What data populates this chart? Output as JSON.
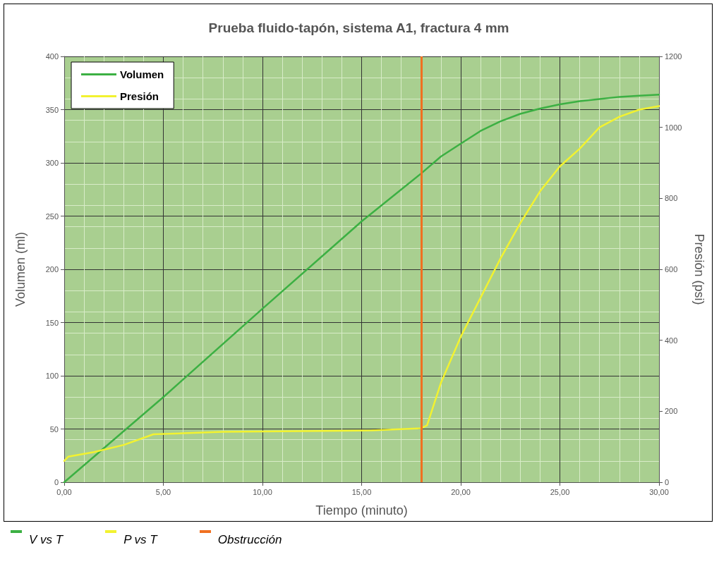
{
  "chart_data": {
    "type": "line",
    "title": "Prueba fluido-tapón, sistema A1, fractura 4 mm",
    "xlabel": "Tiempo (minuto)",
    "ylabel": "Volumen (ml)",
    "y2label": "Presión (psi)",
    "xlim": [
      0,
      30
    ],
    "xticks": [
      {
        "value": 0,
        "label": "0,00"
      },
      {
        "value": 5,
        "label": "5,00"
      },
      {
        "value": 10,
        "label": "10,00"
      },
      {
        "value": 15,
        "label": "15,00"
      },
      {
        "value": 20,
        "label": "20,00"
      },
      {
        "value": 25,
        "label": "25,00"
      },
      {
        "value": 30,
        "label": "30,00"
      }
    ],
    "ylim": [
      0,
      400
    ],
    "yticks": [
      0,
      50,
      100,
      150,
      200,
      250,
      300,
      350,
      400
    ],
    "y2lim": [
      0,
      1200
    ],
    "y2ticks": [
      0,
      200,
      400,
      600,
      800,
      1000,
      1200
    ],
    "grid": true,
    "legend": "top left",
    "marker": "none",
    "line_style": "solid",
    "series": [
      {
        "name": "Volumen",
        "color": "#3cb043",
        "x": [
          0,
          5,
          10,
          15,
          18,
          19,
          20,
          21,
          22,
          23,
          24,
          25,
          26,
          27,
          28,
          29,
          30
        ],
        "values": [
          0,
          80,
          163,
          245,
          290,
          306,
          318,
          330,
          339,
          346,
          351,
          355,
          358,
          360,
          362,
          363,
          364
        ]
      },
      {
        "name": "Presión",
        "color": "#f2f230",
        "axis": "y2",
        "x": [
          0,
          0.2,
          1.5,
          3,
          4.5,
          6,
          8,
          12,
          15.5,
          18,
          18.3,
          19,
          20,
          21,
          22,
          23,
          24,
          25,
          26,
          27,
          28,
          29,
          30
        ],
        "values": [
          60,
          72,
          85,
          105,
          135,
          138,
          142,
          144,
          146,
          152,
          160,
          280,
          410,
          520,
          630,
          730,
          820,
          890,
          940,
          1000,
          1030,
          1050,
          1060
        ]
      }
    ],
    "ref_lines": [
      {
        "axis": "x",
        "value": 18,
        "color": "#f07020"
      }
    ],
    "annotations": [
      "V vs T",
      "P vs T",
      "Obstrucción"
    ]
  }
}
